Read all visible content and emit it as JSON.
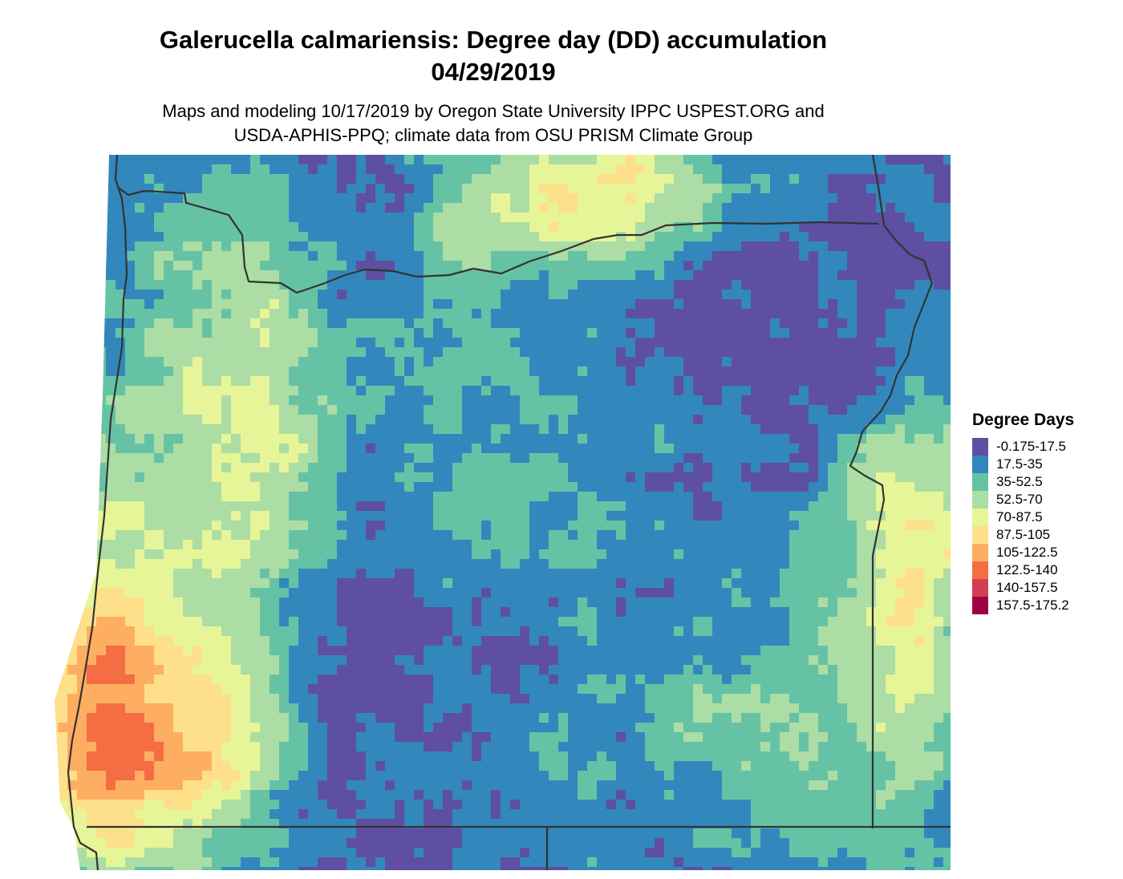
{
  "title": {
    "line1": "Galerucella calmariensis: Degree day (DD) accumulation",
    "line2": "04/29/2019"
  },
  "subtitle": {
    "line1": "Maps and modeling 10/17/2019 by Oregon State University IPPC USPEST.ORG and",
    "line2": "USDA-APHIS-PPQ; climate data from OSU PRISM Climate Group"
  },
  "legend": {
    "title": "Degree Days",
    "items": [
      {
        "label": "-0.175-17.5",
        "color": "#5E4FA2"
      },
      {
        "label": "17.5-35",
        "color": "#3288BD"
      },
      {
        "label": "35-52.5",
        "color": "#66C2A5"
      },
      {
        "label": "52.5-70",
        "color": "#ABDDA4"
      },
      {
        "label": "70-87.5",
        "color": "#E6F598"
      },
      {
        "label": "87.5-105",
        "color": "#FEE08B"
      },
      {
        "label": "105-122.5",
        "color": "#FDAE61"
      },
      {
        "label": "122.5-140",
        "color": "#F46D43"
      },
      {
        "label": "140-157.5",
        "color": "#D53E4F"
      },
      {
        "label": "157.5-175.2",
        "color": "#9E0142"
      }
    ]
  },
  "map": {
    "region": "Oregon",
    "layer": "degree-day-raster",
    "borders": [
      "oregon-state-boundary",
      "washington-border",
      "idaho-border",
      "california-border",
      "nevada-border"
    ]
  }
}
